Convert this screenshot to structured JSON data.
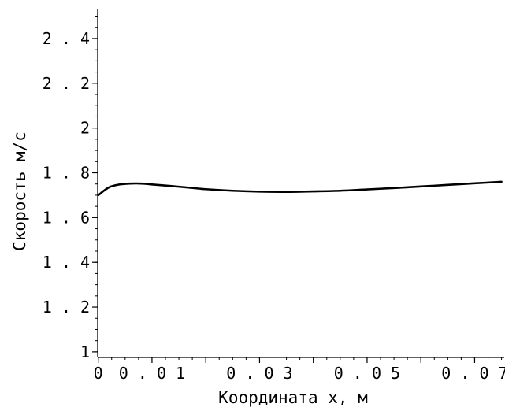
{
  "chart_data": {
    "type": "line",
    "title": "",
    "xlabel": "Координата x, м",
    "ylabel": "Скорость м/с",
    "xlim": [
      -0.0001,
      0.0755
    ],
    "ylim": [
      0.975,
      2.53
    ],
    "x_ticks": [
      0,
      0.01,
      0.03,
      0.05,
      0.07
    ],
    "x_tick_labels": [
      "0",
      "0.01",
      "0.03",
      "0.05",
      "0.07"
    ],
    "y_ticks": [
      1,
      1.2,
      1.4,
      1.6,
      1.8,
      2,
      2.2,
      2.4
    ],
    "y_tick_labels": [
      "1",
      "1.2",
      "1.4",
      "1.6",
      "1.8",
      "2",
      "2.2",
      "2.4"
    ],
    "grid": false,
    "series": [
      {
        "x": [
          0,
          0.002,
          0.004,
          0.006,
          0.008,
          0.01,
          0.015,
          0.02,
          0.025,
          0.03,
          0.035,
          0.04,
          0.045,
          0.05,
          0.055,
          0.06,
          0.065,
          0.07,
          0.075
        ],
        "y": [
          1.7,
          1.735,
          1.748,
          1.752,
          1.752,
          1.748,
          1.738,
          1.727,
          1.72,
          1.716,
          1.715,
          1.717,
          1.72,
          1.726,
          1.732,
          1.739,
          1.746,
          1.753,
          1.76
        ]
      }
    ]
  }
}
